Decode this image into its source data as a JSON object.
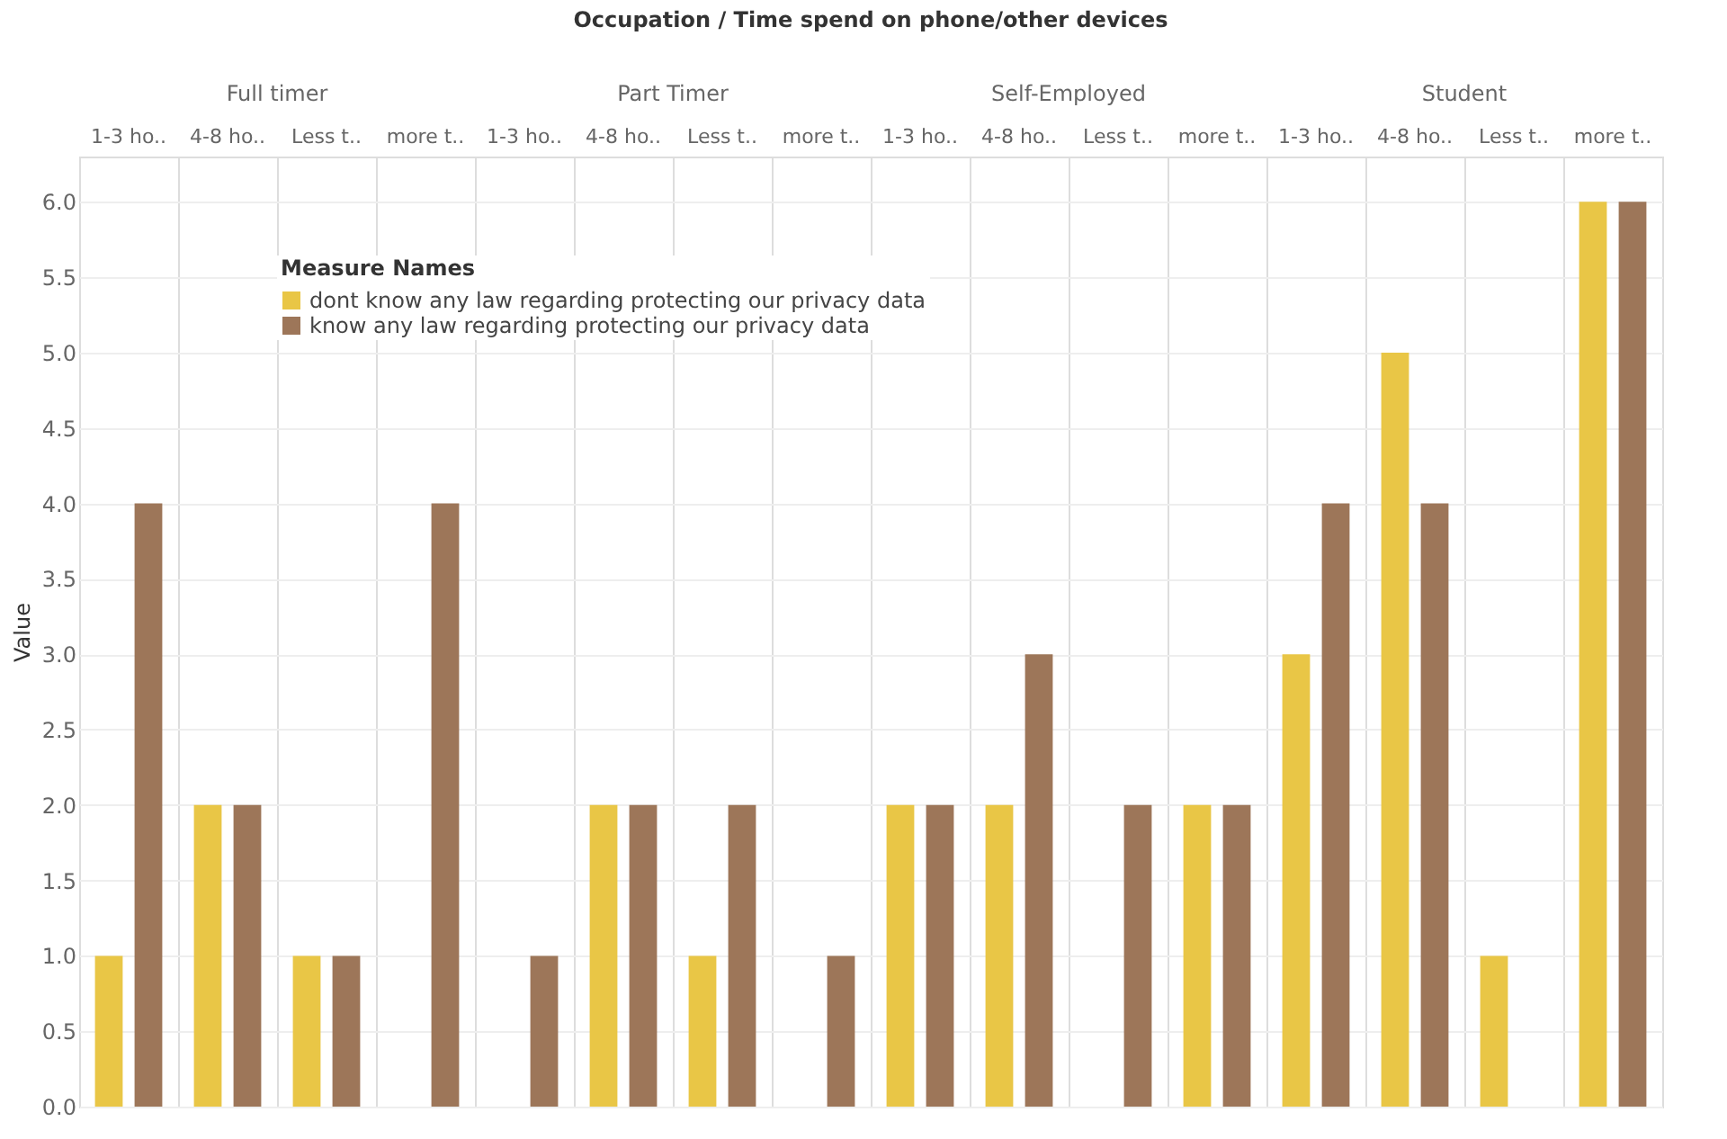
{
  "chart_data": {
    "type": "bar",
    "title": "Occupation / Time spend on phone/other devices",
    "annotations": [
      "Full timer",
      "Part Timer",
      "Self-Employed",
      "Student"
    ],
    "ylabel": "Value",
    "legend_title": "Measure Names",
    "legend": "top left",
    "grid": true,
    "categories": [
      "1-3 ho..",
      "4-8 ho..",
      "Less t..",
      "more t..",
      "1-3 ho..",
      "4-8 ho..",
      "Less t..",
      "more t..",
      "1-3 ho..",
      "4-8 ho..",
      "Less t..",
      "more t..",
      "1-3 ho..",
      "4-8 ho..",
      "Less t..",
      "more t.."
    ],
    "ylim": [
      0,
      6.3
    ],
    "yticks": [
      {
        "value": 0,
        "label": "0.0"
      },
      {
        "value": 0.5,
        "label": "0.5"
      },
      {
        "value": 1,
        "label": "1.0"
      },
      {
        "value": 1.5,
        "label": "1.5"
      },
      {
        "value": 2,
        "label": "2.0"
      },
      {
        "value": 2.5,
        "label": "2.5"
      },
      {
        "value": 3,
        "label": "3.0"
      },
      {
        "value": 3.5,
        "label": "3.5"
      },
      {
        "value": 4,
        "label": "4.0"
      },
      {
        "value": 4.5,
        "label": "4.5"
      },
      {
        "value": 5,
        "label": "5.0"
      },
      {
        "value": 5.5,
        "label": "5.5"
      },
      {
        "value": 6,
        "label": "6.0"
      }
    ],
    "series": [
      {
        "name": "dont know any law regarding protecting our privacy data",
        "color": "#e9c646",
        "values": [
          1,
          2,
          1,
          null,
          null,
          2,
          1,
          null,
          2,
          2,
          null,
          2,
          3,
          5,
          1,
          6
        ]
      },
      {
        "name": "know any law regarding protecting our privacy data",
        "color": "#9d7659",
        "values": [
          4,
          2,
          1,
          4,
          1,
          2,
          2,
          1,
          2,
          3,
          2,
          2,
          4,
          4,
          null,
          6
        ]
      }
    ]
  }
}
